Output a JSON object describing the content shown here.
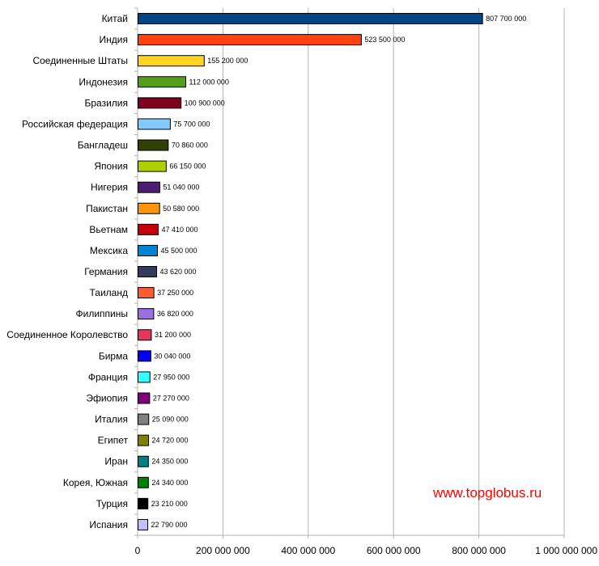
{
  "chart_data": {
    "type": "bar",
    "orientation": "horizontal",
    "xlim": [
      0,
      1000000000
    ],
    "grid": true,
    "x_ticks": [
      0,
      200000000,
      400000000,
      600000000,
      800000000,
      1000000000
    ],
    "x_tick_labels": [
      "0",
      "200 000 000",
      "400 000 000",
      "600 000 000",
      "800 000 000",
      "1 000 000 000"
    ],
    "categories": [
      "Китай",
      "Индия",
      "Соединенные Штаты",
      "Индонезия",
      "Бразилия",
      "Российская федерация",
      "Бангладеш",
      "Япония",
      "Нигерия",
      "Пакистан",
      "Вьетнам",
      "Мексика",
      "Германия",
      "Таиланд",
      "Филиппины",
      "Соединенное Королевство",
      "Бирма",
      "Франция",
      "Эфиопия",
      "Италия",
      "Египет",
      "Иран",
      "Корея, Южная",
      "Турция",
      "Испания"
    ],
    "values": [
      807700000,
      523500000,
      155200000,
      112000000,
      100900000,
      75700000,
      70860000,
      66150000,
      51040000,
      50580000,
      47410000,
      45500000,
      43620000,
      37250000,
      36820000,
      31200000,
      30040000,
      27950000,
      27270000,
      25090000,
      24720000,
      24350000,
      24340000,
      23210000,
      22790000
    ],
    "value_labels": [
      "807 700 000",
      "523 500 000",
      "155 200 000",
      "112 000 000",
      "100 900 000",
      "75 700 000",
      "70 860 000",
      "66 150 000",
      "51 040 000",
      "50 580 000",
      "47 410 000",
      "45 500 000",
      "43 620 000",
      "37 250 000",
      "36 820 000",
      "31 200 000",
      "30 040 000",
      "27 950 000",
      "27 270 000",
      "25 090 000",
      "24 720 000",
      "24 350 000",
      "24 340 000",
      "23 210 000",
      "22 790 000"
    ],
    "colors": [
      "#004586",
      "#ff420e",
      "#ffd320",
      "#579d1c",
      "#7e0021",
      "#83caff",
      "#314004",
      "#aecf00",
      "#4b1f6f",
      "#ff950e",
      "#c5000b",
      "#0084d1",
      "#353a5d",
      "#ff5b33",
      "#9b6fdd",
      "#e8355c",
      "#0000ff",
      "#33ffff",
      "#800080",
      "#808080",
      "#808000",
      "#008080",
      "#008000",
      "#000000",
      "#c0c0ff"
    ]
  },
  "watermark": "www.topglobus.ru"
}
